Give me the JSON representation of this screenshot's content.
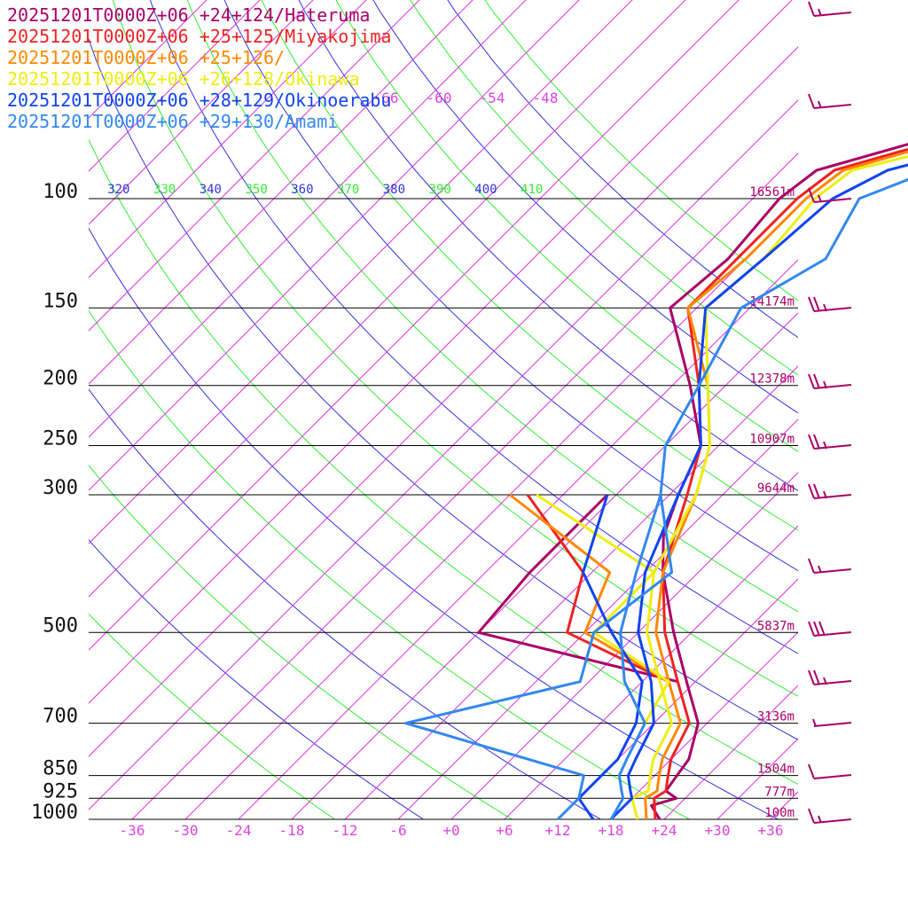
{
  "colors": {
    "dry_adiabat_green": "#33ee33",
    "dry_adiabat_blue": "#3333dd",
    "isotherm": "#dd33dd",
    "barb": "#aa0066",
    "height_label": "#aa0066",
    "axis_label": "#dd44dd",
    "pressure_line": "#000000"
  },
  "chart_data": {
    "type": "line",
    "title": "",
    "xlabel": "",
    "ylabel": "",
    "diagram": "skew-T log-p",
    "pressure_levels": [
      {
        "p": 100,
        "label": "100",
        "height": "16561m"
      },
      {
        "p": 150,
        "label": "150",
        "height": "14174m"
      },
      {
        "p": 200,
        "label": "200",
        "height": "12378m"
      },
      {
        "p": 250,
        "label": "250",
        "height": "10907m"
      },
      {
        "p": 300,
        "label": "300",
        "height": "9644m"
      },
      {
        "p": 500,
        "label": "500",
        "height": "5837m"
      },
      {
        "p": 700,
        "label": "700",
        "height": "3136m"
      },
      {
        "p": 850,
        "label": "850",
        "height": "1504m"
      },
      {
        "p": 925,
        "label": "925",
        "height": "777m"
      },
      {
        "p": 1000,
        "label": "1000",
        "height": "100m"
      }
    ],
    "temperature_ticks": [
      "-36",
      "-30",
      "-24",
      "-18",
      "-12",
      "-6",
      "+0",
      "+6",
      "+12",
      "+18",
      "+24",
      "+30",
      "+36"
    ],
    "upper_isotherm_labels": [
      "-66",
      "-60",
      "-54",
      "-48"
    ],
    "theta_labels": [
      {
        "value": "320",
        "color": "blue"
      },
      {
        "value": "330",
        "color": "green"
      },
      {
        "value": "340",
        "color": "blue"
      },
      {
        "value": "350",
        "color": "green"
      },
      {
        "value": "360",
        "color": "blue"
      },
      {
        "value": "370",
        "color": "green"
      },
      {
        "value": "380",
        "color": "blue"
      },
      {
        "value": "390",
        "color": "green"
      },
      {
        "value": "400",
        "color": "blue"
      },
      {
        "value": "410",
        "color": "green"
      }
    ],
    "series": [
      {
        "name": "20251201T0000Z+06 +24+124/Hateruma",
        "color": "#aa0066",
        "temperature": [
          [
            1000,
            23.5
          ],
          [
            950,
            21
          ],
          [
            925,
            23
          ],
          [
            900,
            21
          ],
          [
            850,
            20.5
          ],
          [
            800,
            20
          ],
          [
            700,
            17
          ],
          [
            600,
            11
          ],
          [
            500,
            4
          ],
          [
            400,
            -4
          ],
          [
            350,
            -8
          ],
          [
            300,
            -11
          ],
          [
            250,
            -14
          ],
          [
            200,
            -22
          ],
          [
            150,
            -33
          ],
          [
            125,
            -32
          ],
          [
            100,
            -33
          ],
          [
            90,
            -32
          ],
          [
            80,
            -23
          ],
          [
            70,
            -15
          ],
          [
            60,
            -6
          ],
          [
            50,
            2
          ],
          [
            40,
            10
          ]
        ],
        "dewpoint": [
          [
            600,
            10
          ],
          [
            500,
            -18
          ],
          [
            400,
            -19
          ],
          [
            300,
            -19
          ]
        ]
      },
      {
        "name": "20251201T0000Z+06 +25+125/Miyakojima",
        "color": "#ee2222",
        "temperature": [
          [
            1000,
            23
          ],
          [
            925,
            20.5
          ],
          [
            900,
            21
          ],
          [
            850,
            19.5
          ],
          [
            800,
            18
          ],
          [
            700,
            16
          ],
          [
            600,
            10
          ],
          [
            500,
            3
          ],
          [
            400,
            -4
          ],
          [
            300,
            -10
          ],
          [
            250,
            -14
          ],
          [
            200,
            -21
          ],
          [
            150,
            -31
          ],
          [
            125,
            -31
          ],
          [
            100,
            -31
          ],
          [
            90,
            -30
          ],
          [
            80,
            -21
          ],
          [
            70,
            -13
          ],
          [
            60,
            -5
          ],
          [
            50,
            3
          ],
          [
            40,
            11
          ]
        ],
        "dewpoint": [
          [
            600,
            9
          ],
          [
            500,
            -8
          ],
          [
            400,
            -13
          ],
          [
            300,
            -28
          ]
        ]
      },
      {
        "name": "20251201T0000Z+06 +25+126/",
        "color": "#ff8800",
        "temperature": [
          [
            1000,
            22
          ],
          [
            925,
            19.5
          ],
          [
            900,
            20
          ],
          [
            850,
            18.5
          ],
          [
            800,
            17
          ],
          [
            700,
            15
          ],
          [
            600,
            9
          ],
          [
            500,
            2
          ],
          [
            400,
            -4
          ],
          [
            300,
            -9
          ],
          [
            250,
            -13
          ],
          [
            200,
            -20
          ],
          [
            150,
            -31
          ],
          [
            125,
            -30
          ],
          [
            100,
            -30
          ],
          [
            90,
            -29
          ],
          [
            80,
            -20
          ],
          [
            70,
            -12
          ],
          [
            60,
            -4
          ],
          [
            50,
            4
          ],
          [
            40,
            12
          ]
        ],
        "dewpoint": [
          [
            600,
            9
          ],
          [
            500,
            -6
          ],
          [
            400,
            -10
          ],
          [
            300,
            -30
          ]
        ]
      },
      {
        "name": "20251201T0000Z+06 +26+128/Okinawa",
        "color": "#eeee11",
        "temperature": [
          [
            1000,
            21
          ],
          [
            925,
            18
          ],
          [
            900,
            19
          ],
          [
            850,
            17.5
          ],
          [
            800,
            16
          ],
          [
            700,
            14
          ],
          [
            600,
            8
          ],
          [
            500,
            1
          ],
          [
            400,
            -5
          ],
          [
            300,
            -9
          ],
          [
            250,
            -13
          ],
          [
            200,
            -20
          ],
          [
            150,
            -29
          ],
          [
            125,
            -28
          ],
          [
            100,
            -29
          ],
          [
            90,
            -28
          ],
          [
            80,
            -17
          ],
          [
            70,
            -8
          ],
          [
            60,
            -1
          ],
          [
            50,
            6
          ],
          [
            40,
            13
          ]
        ],
        "dewpoint": [
          [
            700,
            11
          ],
          [
            600,
            9
          ],
          [
            500,
            -5
          ],
          [
            400,
            -5
          ],
          [
            300,
            -27
          ]
        ]
      },
      {
        "name": "20251201T0000Z+06 +28+129/Okinoerabu",
        "color": "#1144ee",
        "temperature": [
          [
            1000,
            18
          ],
          [
            925,
            18
          ],
          [
            900,
            17
          ],
          [
            850,
            15
          ],
          [
            800,
            14
          ],
          [
            700,
            12
          ],
          [
            600,
            7
          ],
          [
            500,
            0
          ],
          [
            400,
            -6
          ],
          [
            300,
            -11
          ],
          [
            250,
            -14
          ],
          [
            200,
            -21
          ],
          [
            150,
            -29
          ],
          [
            125,
            -28
          ],
          [
            100,
            -27
          ],
          [
            90,
            -24
          ],
          [
            80,
            -14
          ],
          [
            70,
            -6
          ],
          [
            60,
            1
          ],
          [
            50,
            8
          ],
          [
            40,
            17
          ],
          [
            35,
            22
          ]
        ],
        "dewpoint": [
          [
            1000,
            16
          ],
          [
            925,
            12
          ],
          [
            850,
            12
          ],
          [
            800,
            12
          ],
          [
            700,
            10
          ],
          [
            600,
            6
          ],
          [
            500,
            -3
          ],
          [
            400,
            -13
          ],
          [
            300,
            -19
          ]
        ]
      },
      {
        "name": "20251201T0000Z+06 +29+130/Amami",
        "color": "#3388ee",
        "temperature": [
          [
            1000,
            18
          ],
          [
            925,
            17
          ],
          [
            900,
            16
          ],
          [
            850,
            14
          ],
          [
            800,
            13
          ],
          [
            700,
            11
          ],
          [
            600,
            4
          ],
          [
            500,
            -2
          ],
          [
            400,
            -7
          ],
          [
            300,
            -13
          ],
          [
            250,
            -18
          ],
          [
            200,
            -21
          ],
          [
            150,
            -25
          ],
          [
            125,
            -21
          ],
          [
            100,
            -24
          ],
          [
            90,
            -19
          ],
          [
            80,
            -9
          ],
          [
            70,
            -1
          ],
          [
            60,
            6
          ],
          [
            50,
            13
          ]
        ],
        "dewpoint": [
          [
            1000,
            12
          ],
          [
            925,
            12
          ],
          [
            850,
            10
          ],
          [
            700,
            -16
          ],
          [
            600,
            -1
          ],
          [
            500,
            -5
          ],
          [
            400,
            -3
          ],
          [
            300,
            -13
          ]
        ]
      }
    ],
    "wind_barbs": [
      {
        "level": "top",
        "speed_kt": 15
      },
      {
        "level": "upper",
        "speed_kt": 15
      },
      {
        "level": "100",
        "speed_kt": 15
      },
      {
        "level": "150",
        "speed_kt": 25
      },
      {
        "level": "200",
        "speed_kt": 25
      },
      {
        "level": "250",
        "speed_kt": 25
      },
      {
        "level": "300",
        "speed_kt": 25
      },
      {
        "level": "400",
        "speed_kt": 15
      },
      {
        "level": "500",
        "speed_kt": 30
      },
      {
        "level": "600",
        "speed_kt": 25
      },
      {
        "level": "700",
        "speed_kt": 5
      },
      {
        "level": "850",
        "speed_kt": 10
      },
      {
        "level": "1000",
        "speed_kt": 15
      }
    ],
    "grid": true,
    "legend": "top-left"
  }
}
